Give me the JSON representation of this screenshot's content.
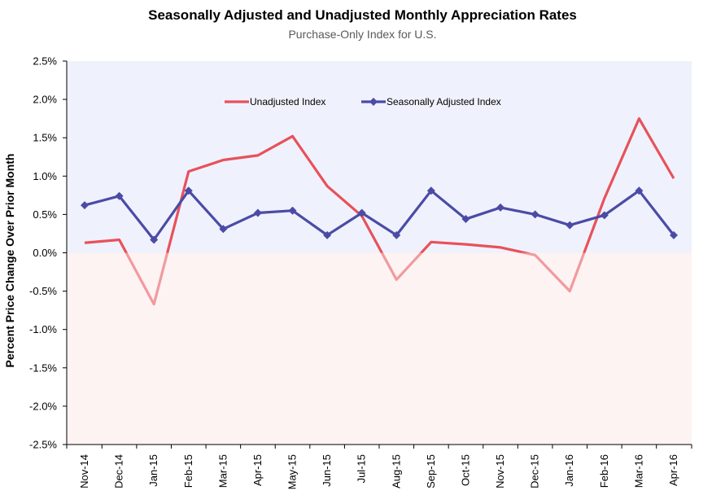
{
  "chart_data": {
    "type": "line",
    "title": "Seasonally Adjusted and Unadjusted Monthly Appreciation Rates",
    "subtitle": "Purchase-Only Index for U.S.",
    "xlabel": "",
    "ylabel": "Percent Price Change Over Prior Month",
    "ylim": [
      -0.025,
      0.025
    ],
    "y_tick_labels": [
      "2.5%",
      "2.0%",
      "1.5%",
      "1.0%",
      "0.5%",
      "0.0%",
      "-0.5%",
      "-1.0%",
      "-1.5%",
      "-2.0%",
      "-2.5%"
    ],
    "y_ticks": [
      0.025,
      0.02,
      0.015,
      0.01,
      0.005,
      0.0,
      -0.005,
      -0.01,
      -0.015,
      -0.02,
      -0.025
    ],
    "categories": [
      "Nov-14",
      "Dec-14",
      "Jan-15",
      "Feb-15",
      "Mar-15",
      "Apr-15",
      "May-15",
      "Jun-15",
      "Jul-15",
      "Aug-15",
      "Sep-15",
      "Oct-15",
      "Nov-15",
      "Dec-15",
      "Jan-16",
      "Feb-16",
      "Mar-16",
      "Apr-16"
    ],
    "series": [
      {
        "name": "Unadjusted Index",
        "color": "#e8515a",
        "marker": "none",
        "values": [
          0.0013,
          0.0017,
          -0.0067,
          0.0106,
          0.0121,
          0.0127,
          0.0152,
          0.0087,
          0.0048,
          -0.0035,
          0.0014,
          0.0011,
          0.0007,
          -0.0003,
          -0.005,
          0.0071,
          0.0175,
          0.0097
        ]
      },
      {
        "name": "Seasonally Adjusted Index",
        "color": "#4b4ba6",
        "marker": "diamond",
        "values": [
          0.0062,
          0.0074,
          0.0017,
          0.0081,
          0.0031,
          0.0052,
          0.0055,
          0.0023,
          0.0052,
          0.0023,
          0.0081,
          0.0044,
          0.0059,
          0.005,
          0.0036,
          0.0049,
          0.0081,
          0.0023
        ]
      }
    ],
    "grid": false,
    "legend_position": "top",
    "background_positive": "#eff2fc",
    "background_negative": "#fcf3f2"
  }
}
